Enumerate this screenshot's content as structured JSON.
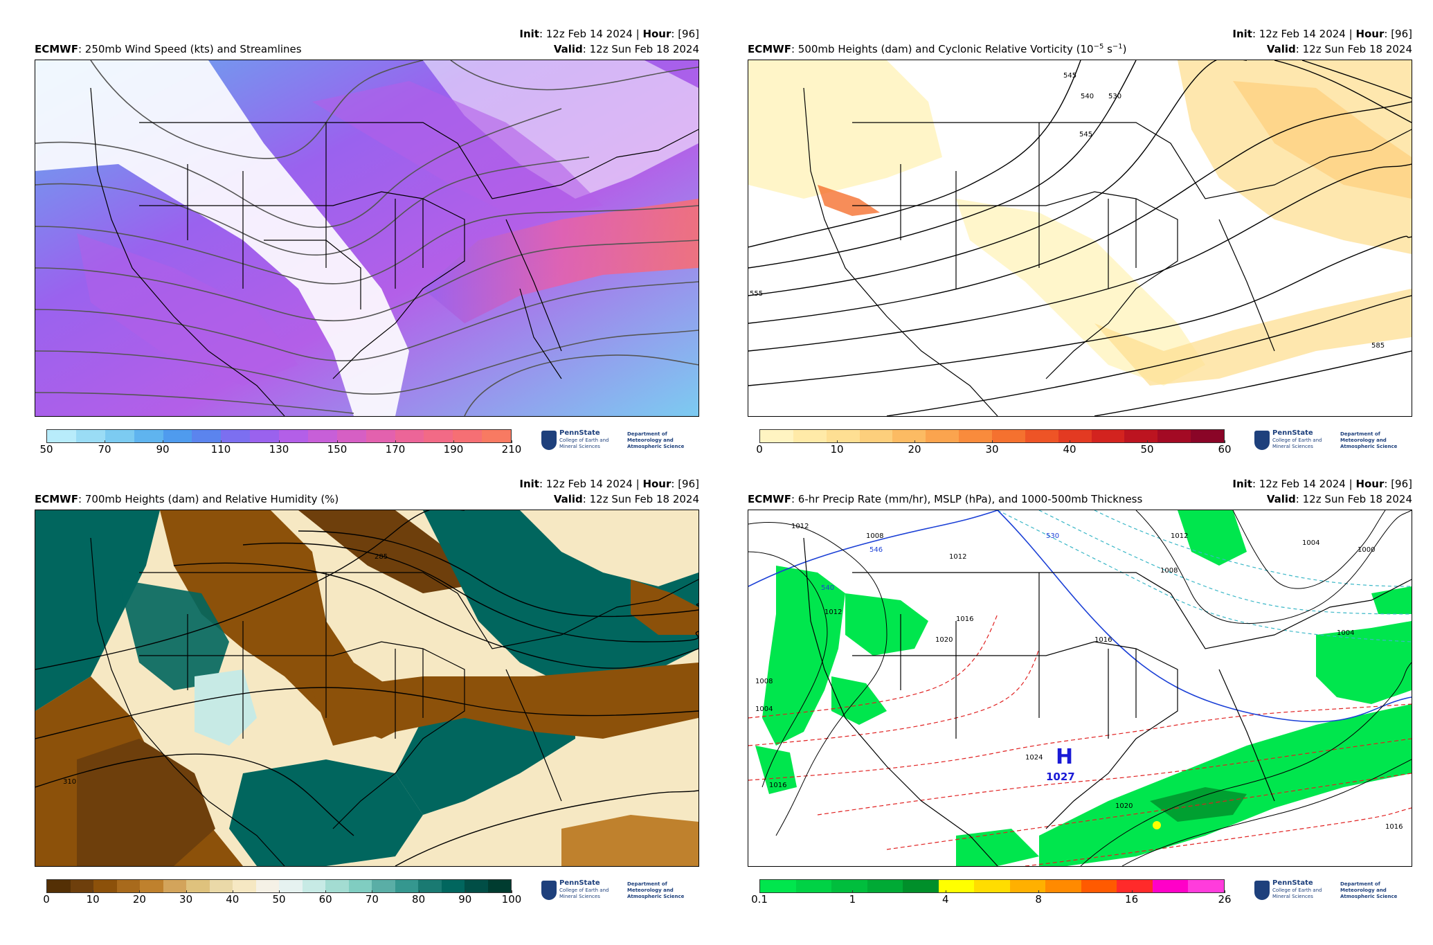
{
  "panels": [
    {
      "init_prefix": "Init",
      "init_value": ": 12z Feb 14 2024 | ",
      "hour_prefix": "Hour",
      "hour_value": ": [96]",
      "model": "ECMWF",
      "title": ": 250mb Wind Speed (kts) and Streamlines",
      "valid_prefix": "Valid",
      "valid_value": ": 12z Sun Feb 18 2024",
      "colorbar_ticks": [
        "50",
        "70",
        "90",
        "110",
        "130",
        "150",
        "170",
        "190",
        "210"
      ],
      "colorbar_colors": [
        "#b8ecfb",
        "#9adcf5",
        "#7ccbf1",
        "#5fb4ef",
        "#4f9bee",
        "#5b84ee",
        "#7c6ff0",
        "#9a62ee",
        "#b35fe8",
        "#c75fd8",
        "#d65fc4",
        "#e361ae",
        "#ec6598",
        "#f26a86",
        "#f66f74",
        "#f87a62"
      ]
    },
    {
      "init_prefix": "Init",
      "init_value": ": 12z Feb 14 2024 | ",
      "hour_prefix": "Hour",
      "hour_value": ": [96]",
      "model": "ECMWF",
      "title": ": 500mb Heights (dam) and Cyclonic Relative Vorticity (10",
      "title_sup": "−5",
      "title_mid": " s",
      "title_sup2": "−1",
      "title_end": ")",
      "valid_prefix": "Valid",
      "valid_value": ": 12z Sun Feb 18 2024",
      "colorbar_ticks": [
        "0",
        "10",
        "20",
        "30",
        "40",
        "50",
        "60"
      ],
      "colorbar_colors": [
        "#fff4c2",
        "#ffeaa8",
        "#fedf93",
        "#fdcf7c",
        "#fcbb63",
        "#fba44e",
        "#f98b3c",
        "#f5712f",
        "#ee5426",
        "#e33a22",
        "#d3231f",
        "#bc1420",
        "#a30a24",
        "#8a0527"
      ],
      "contour_labels": [
        "545",
        "540",
        "530",
        "545",
        "555",
        "585"
      ]
    },
    {
      "init_prefix": "Init",
      "init_value": ": 12z Feb 14 2024 | ",
      "hour_prefix": "Hour",
      "hour_value": ": [96]",
      "model": "ECMWF",
      "title": ": 700mb Heights (dam) and Relative Humidity (%)",
      "valid_prefix": "Valid",
      "valid_value": ": 12z Sun Feb 18 2024",
      "colorbar_ticks": [
        "0",
        "10",
        "20",
        "30",
        "40",
        "50",
        "60",
        "70",
        "80",
        "90",
        "100"
      ],
      "colorbar_colors": [
        "#543005",
        "#6e3f0c",
        "#8c510a",
        "#a86a1c",
        "#bf812d",
        "#d3a45b",
        "#dfc27d",
        "#ead9a8",
        "#f6e8c3",
        "#f5f1e6",
        "#e6f2f0",
        "#c7eae5",
        "#a3dcd2",
        "#80cdc1",
        "#5aaea6",
        "#35978f",
        "#1a7a72",
        "#01665e",
        "#014e46",
        "#003c30"
      ],
      "contour_labels": [
        "285",
        "310"
      ]
    },
    {
      "init_prefix": "Init",
      "init_value": ": 12z Feb 14 2024 | ",
      "hour_prefix": "Hour",
      "hour_value": ": [96]",
      "model": "ECMWF",
      "title": ": 6-hr Precip Rate (mm/hr), MSLP (hPa), and 1000-500mb Thickness",
      "valid_prefix": "Valid",
      "valid_value": ": 12z Sun Feb 18 2024",
      "colorbar_ticks": [
        "0.1",
        "1",
        "4",
        "8",
        "16",
        "26"
      ],
      "colorbar_colors": [
        "#00e64d",
        "#00d245",
        "#00be3d",
        "#00aa35",
        "#008f2a",
        "#ffff00",
        "#ffdd00",
        "#ffb000",
        "#ff8a00",
        "#ff5a00",
        "#ff2a2a",
        "#ff00c8",
        "#ff3cdc"
      ],
      "high_label": "H",
      "high_value": "1027",
      "isobar_labels": [
        "1012",
        "1008",
        "1012",
        "1012",
        "1016",
        "1020",
        "1016",
        "1012",
        "1008",
        "1004",
        "1000",
        "1004",
        "1008",
        "1004",
        "1016",
        "1020",
        "1024",
        "1016"
      ],
      "thickness_labels": [
        "546",
        "540",
        "530"
      ]
    }
  ],
  "logo": {
    "university": "PennState",
    "college": "College of Earth and Mineral Sciences",
    "department": "Department of Meteorology and Atmospheric Science"
  }
}
